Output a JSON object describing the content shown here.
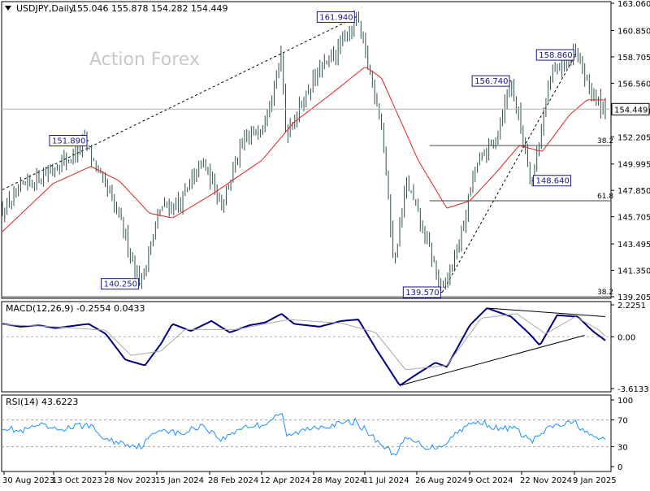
{
  "chart_data": [
    {
      "type": "candlestick",
      "panel": "price",
      "title": "USDJPY,Daily",
      "ohlc": [
        155.046,
        155.878,
        154.282,
        154.449
      ],
      "ohlc_text": "155.046 155.878 154.282 154.449",
      "watermark": "Action Forex",
      "ylim": [
        139.205,
        163.06
      ],
      "yticks": [
        139.205,
        141.35,
        143.495,
        145.705,
        147.85,
        149.995,
        152.205,
        154.35,
        156.56,
        158.705,
        160.85,
        163.06
      ],
      "ytick_labels": [
        "139.205",
        "141.350",
        "143.495",
        "145.705",
        "147.850",
        "149.995",
        "152.205",
        "154.350",
        "156.560",
        "158.705",
        "160.850",
        "163.060"
      ],
      "current_price": 154.449,
      "current_price_label": "154.449",
      "xtick_labels": [
        "30 Aug 2023",
        "13 Oct 2023",
        "28 Nov 2023",
        "15 Jan 2024",
        "28 Feb 2024",
        "12 Apr 2024",
        "28 May 2024",
        "11 Jul 2024",
        "26 Aug 2024",
        "9 Oct 2024",
        "22 Nov 2024",
        "9 Jan 2025"
      ],
      "price_path": [
        [
          "2023-08-30",
          146.2
        ],
        [
          "2023-09-20",
          148.3
        ],
        [
          "2023-10-13",
          149.6
        ],
        [
          "2023-11-01",
          150.8
        ],
        [
          "2023-11-10",
          151.9
        ],
        [
          "2023-11-22",
          149.2
        ],
        [
          "2023-12-10",
          145.6
        ],
        [
          "2023-12-28",
          140.25
        ],
        [
          "2024-01-15",
          146.5
        ],
        [
          "2024-02-01",
          146.8
        ],
        [
          "2024-02-20",
          150.2
        ],
        [
          "2024-03-08",
          146.9
        ],
        [
          "2024-03-26",
          151.5
        ],
        [
          "2024-04-12",
          153.2
        ],
        [
          "2024-04-29",
          158.6
        ],
        [
          "2024-05-03",
          152.5
        ],
        [
          "2024-05-28",
          157.0
        ],
        [
          "2024-06-20",
          159.6
        ],
        [
          "2024-07-03",
          161.94
        ],
        [
          "2024-07-11",
          159.0
        ],
        [
          "2024-07-25",
          153.5
        ],
        [
          "2024-08-05",
          141.8
        ],
        [
          "2024-08-16",
          148.6
        ],
        [
          "2024-09-05",
          143.0
        ],
        [
          "2024-09-16",
          139.57
        ],
        [
          "2024-10-01",
          143.6
        ],
        [
          "2024-10-15",
          149.8
        ],
        [
          "2024-11-01",
          152.0
        ],
        [
          "2024-11-15",
          156.74
        ],
        [
          "2024-12-03",
          148.64
        ],
        [
          "2024-12-20",
          157.4
        ],
        [
          "2025-01-10",
          158.86
        ],
        [
          "2025-01-27",
          155.3
        ],
        [
          "2025-02-05",
          154.449
        ]
      ],
      "ma_path": [
        [
          "2023-08-30",
          144.5
        ],
        [
          "2023-10-13",
          148.4
        ],
        [
          "2023-11-15",
          149.8
        ],
        [
          "2023-12-10",
          148.6
        ],
        [
          "2024-01-05",
          146.0
        ],
        [
          "2024-01-25",
          145.6
        ],
        [
          "2024-02-28",
          147.5
        ],
        [
          "2024-04-12",
          150.3
        ],
        [
          "2024-05-10",
          153.4
        ],
        [
          "2024-06-10",
          155.6
        ],
        [
          "2024-07-11",
          157.9
        ],
        [
          "2024-07-25",
          157.0
        ],
        [
          "2024-08-26",
          150.3
        ],
        [
          "2024-09-20",
          146.4
        ],
        [
          "2024-10-10",
          147.0
        ],
        [
          "2024-11-01",
          149.2
        ],
        [
          "2024-11-22",
          151.5
        ],
        [
          "2024-12-12",
          151.0
        ],
        [
          "2025-01-05",
          154.0
        ],
        [
          "2025-01-20",
          155.2
        ],
        [
          "2025-02-05",
          155.2
        ]
      ],
      "annotations": [
        {
          "label": "161.940",
          "date": "2024-07-03",
          "value": 161.94,
          "position": "left"
        },
        {
          "label": "151.890",
          "date": "2023-11-13",
          "value": 151.89,
          "position": "left"
        },
        {
          "label": "140.250",
          "date": "2023-12-28",
          "value": 140.25,
          "position": "left"
        },
        {
          "label": "139.570",
          "date": "2024-09-16",
          "value": 139.57,
          "position": "left"
        },
        {
          "label": "156.740",
          "date": "2024-11-15",
          "value": 156.74,
          "position": "left"
        },
        {
          "label": "148.640",
          "date": "2024-12-03",
          "value": 148.64,
          "position": "right"
        },
        {
          "label": "158.860",
          "date": "2025-01-10",
          "value": 158.86,
          "position": "left"
        }
      ],
      "trendlines": [
        {
          "from": [
            "2023-08-30",
            147.9
          ],
          "to": [
            "2024-07-03",
            161.94
          ],
          "style": "dashed"
        },
        {
          "from": [
            "2024-09-16",
            139.57
          ],
          "to": [
            "2025-01-10",
            158.86
          ],
          "style": "dashed"
        }
      ],
      "fib_levels": [
        {
          "label": "38.2",
          "value": 151.5,
          "from": "2024-09-05"
        },
        {
          "label": "61.8",
          "value": 147.0,
          "from": "2024-09-05"
        },
        {
          "label": "38.2",
          "value": 139.2,
          "from": "2023-08-30"
        }
      ],
      "colors": {
        "candles": "#2f4f4f",
        "ma": "#e02020",
        "annotation_box": "#1a1a80",
        "grid": "#c8c8c8"
      }
    },
    {
      "type": "line",
      "panel": "macd",
      "title": "MACD(12,26,9) -0.2554 0.0433",
      "ylim": [
        -3.6133,
        2.2251
      ],
      "yticks": [
        2.2251,
        0.0,
        -3.6133
      ],
      "ytick_labels": [
        "2.2251",
        "0.00",
        "-3.6133"
      ],
      "series": [
        {
          "role": "macd",
          "points": [
            [
              "2023-08-30",
              0.9
            ],
            [
              "2023-09-15",
              0.7
            ],
            [
              "2023-10-01",
              0.8
            ],
            [
              "2023-10-15",
              0.6
            ],
            [
              "2023-11-13",
              0.9
            ],
            [
              "2023-11-28",
              0.2
            ],
            [
              "2023-12-15",
              -1.6
            ],
            [
              "2024-01-01",
              -2.0
            ],
            [
              "2024-01-15",
              -0.5
            ],
            [
              "2024-01-25",
              0.9
            ],
            [
              "2024-02-10",
              0.4
            ],
            [
              "2024-02-28",
              1.1
            ],
            [
              "2024-03-15",
              0.3
            ],
            [
              "2024-04-01",
              0.8
            ],
            [
              "2024-04-15",
              1.0
            ],
            [
              "2024-04-29",
              1.6
            ],
            [
              "2024-05-10",
              0.9
            ],
            [
              "2024-06-01",
              0.7
            ],
            [
              "2024-06-20",
              1.1
            ],
            [
              "2024-07-05",
              1.2
            ],
            [
              "2024-07-20",
              -0.8
            ],
            [
              "2024-08-10",
              -3.4
            ],
            [
              "2024-08-25",
              -2.6
            ],
            [
              "2024-09-10",
              -1.8
            ],
            [
              "2024-09-20",
              -2.1
            ],
            [
              "2024-10-10",
              0.8
            ],
            [
              "2024-10-25",
              2.0
            ],
            [
              "2024-11-15",
              1.4
            ],
            [
              "2024-12-01",
              0.2
            ],
            [
              "2024-12-10",
              -0.6
            ],
            [
              "2024-12-25",
              1.5
            ],
            [
              "2025-01-12",
              1.4
            ],
            [
              "2025-01-25",
              0.4
            ],
            [
              "2025-02-05",
              -0.2554
            ]
          ]
        },
        {
          "role": "signal",
          "points": [
            [
              "2023-08-30",
              0.85
            ],
            [
              "2023-10-15",
              0.7
            ],
            [
              "2023-11-28",
              0.45
            ],
            [
              "2023-12-20",
              -1.3
            ],
            [
              "2024-01-15",
              -1.0
            ],
            [
              "2024-02-05",
              0.5
            ],
            [
              "2024-03-20",
              0.5
            ],
            [
              "2024-05-05",
              1.2
            ],
            [
              "2024-06-20",
              0.95
            ],
            [
              "2024-07-20",
              0.3
            ],
            [
              "2024-08-15",
              -2.3
            ],
            [
              "2024-09-20",
              -2.0
            ],
            [
              "2024-10-20",
              1.3
            ],
            [
              "2024-11-20",
              1.6
            ],
            [
              "2024-12-15",
              0.2
            ],
            [
              "2025-01-10",
              1.4
            ],
            [
              "2025-01-30",
              0.5
            ],
            [
              "2025-02-05",
              0.0433
            ]
          ]
        }
      ],
      "trendlines": [
        {
          "from": [
            "2024-08-10",
            -3.4
          ],
          "to": [
            "2025-01-18",
            0.1
          ]
        },
        {
          "from": [
            "2024-10-25",
            2.0
          ],
          "to": [
            "2025-02-05",
            1.4
          ]
        }
      ],
      "colors": {
        "macd": "#000080",
        "signal": "#a9a9a9"
      }
    },
    {
      "type": "line",
      "panel": "rsi",
      "title": "RSI(14) 43.6223",
      "ylim": [
        0,
        100
      ],
      "yticks": [
        100,
        70,
        30,
        0
      ],
      "ytick_labels": [
        "100",
        "70",
        "30",
        "0"
      ],
      "levels": [
        70,
        30
      ],
      "series": [
        {
          "role": "rsi",
          "points": [
            [
              "2023-08-30",
              60
            ],
            [
              "2023-09-15",
              52
            ],
            [
              "2023-10-01",
              62
            ],
            [
              "2023-10-15",
              55
            ],
            [
              "2023-11-13",
              63
            ],
            [
              "2023-11-28",
              40
            ],
            [
              "2023-12-15",
              35
            ],
            [
              "2023-12-28",
              30
            ],
            [
              "2024-01-15",
              58
            ],
            [
              "2024-02-01",
              48
            ],
            [
              "2024-02-20",
              63
            ],
            [
              "2024-03-08",
              40
            ],
            [
              "2024-03-26",
              60
            ],
            [
              "2024-04-12",
              62
            ],
            [
              "2024-04-29",
              82
            ],
            [
              "2024-05-03",
              45
            ],
            [
              "2024-05-28",
              60
            ],
            [
              "2024-06-20",
              64
            ],
            [
              "2024-07-03",
              68
            ],
            [
              "2024-07-15",
              48
            ],
            [
              "2024-08-05",
              18
            ],
            [
              "2024-08-16",
              42
            ],
            [
              "2024-09-05",
              28
            ],
            [
              "2024-09-16",
              32
            ],
            [
              "2024-10-05",
              60
            ],
            [
              "2024-10-20",
              68
            ],
            [
              "2024-11-05",
              55
            ],
            [
              "2024-11-15",
              60
            ],
            [
              "2024-12-03",
              38
            ],
            [
              "2024-12-20",
              60
            ],
            [
              "2025-01-10",
              66
            ],
            [
              "2025-01-27",
              40
            ],
            [
              "2025-02-05",
              43.6223
            ]
          ]
        }
      ],
      "colors": {
        "rsi": "#1e90ff",
        "level": "#a0a0a0"
      }
    }
  ]
}
